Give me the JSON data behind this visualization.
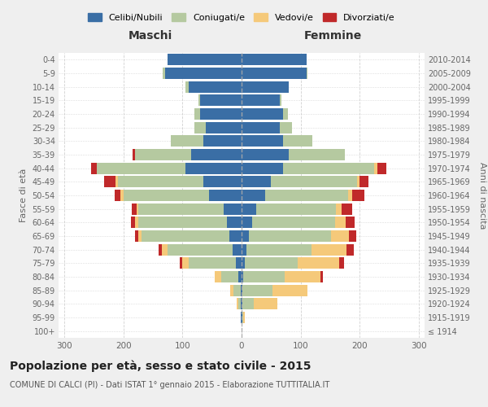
{
  "age_groups": [
    "100+",
    "95-99",
    "90-94",
    "85-89",
    "80-84",
    "75-79",
    "70-74",
    "65-69",
    "60-64",
    "55-59",
    "50-54",
    "45-49",
    "40-44",
    "35-39",
    "30-34",
    "25-29",
    "20-24",
    "15-19",
    "10-14",
    "5-9",
    "0-4"
  ],
  "birth_years": [
    "≤ 1914",
    "1915-1919",
    "1920-1924",
    "1925-1929",
    "1930-1934",
    "1935-1939",
    "1940-1944",
    "1945-1949",
    "1950-1954",
    "1955-1959",
    "1960-1964",
    "1965-1969",
    "1970-1974",
    "1975-1979",
    "1980-1984",
    "1985-1989",
    "1990-1994",
    "1995-1999",
    "2000-2004",
    "2005-2009",
    "2010-2014"
  ],
  "colors": {
    "celibi": "#3a6ea5",
    "coniugati": "#b5c9a0",
    "vedovi": "#f5c97a",
    "divorziati": "#c0292a"
  },
  "maschi": {
    "celibi": [
      0,
      1,
      1,
      2,
      5,
      10,
      15,
      20,
      25,
      30,
      55,
      65,
      95,
      85,
      65,
      60,
      70,
      70,
      90,
      130,
      125
    ],
    "coniugati": [
      0,
      0,
      5,
      12,
      30,
      80,
      110,
      150,
      150,
      145,
      145,
      145,
      150,
      95,
      55,
      20,
      10,
      3,
      5,
      3,
      0
    ],
    "vedovi": [
      0,
      0,
      2,
      5,
      10,
      10,
      10,
      5,
      5,
      3,
      5,
      3,
      0,
      0,
      0,
      0,
      0,
      0,
      0,
      0,
      0
    ],
    "divorziati": [
      0,
      0,
      0,
      0,
      0,
      5,
      5,
      5,
      8,
      8,
      10,
      20,
      10,
      5,
      0,
      0,
      0,
      0,
      0,
      0,
      0
    ]
  },
  "femmine": {
    "celibi": [
      0,
      1,
      1,
      2,
      3,
      5,
      8,
      12,
      18,
      25,
      40,
      50,
      70,
      80,
      70,
      65,
      70,
      65,
      80,
      110,
      110
    ],
    "coniugati": [
      0,
      2,
      20,
      50,
      70,
      90,
      110,
      140,
      140,
      135,
      140,
      145,
      155,
      95,
      50,
      20,
      8,
      2,
      0,
      2,
      0
    ],
    "vedovi": [
      0,
      2,
      40,
      60,
      60,
      70,
      60,
      30,
      18,
      10,
      8,
      5,
      5,
      0,
      0,
      0,
      0,
      0,
      0,
      0,
      0
    ],
    "divorziati": [
      0,
      0,
      0,
      0,
      5,
      8,
      12,
      12,
      15,
      18,
      20,
      15,
      15,
      0,
      0,
      0,
      0,
      0,
      0,
      0,
      0
    ]
  },
  "xlim": 310,
  "title": "Popolazione per età, sesso e stato civile - 2015",
  "subtitle": "COMUNE DI CALCI (PI) - Dati ISTAT 1° gennaio 2015 - Elaborazione TUTTITALIA.IT",
  "legend_labels": [
    "Celibi/Nubili",
    "Coniugati/e",
    "Vedovi/e",
    "Divorziati/e"
  ],
  "xlabel_maschi": "Maschi",
  "xlabel_femmine": "Femmine",
  "ylabel_left": "Fasce di età",
  "ylabel_right": "Anni di nascita",
  "background_color": "#efefef",
  "plot_background": "#ffffff",
  "grid_color": "#cccccc"
}
